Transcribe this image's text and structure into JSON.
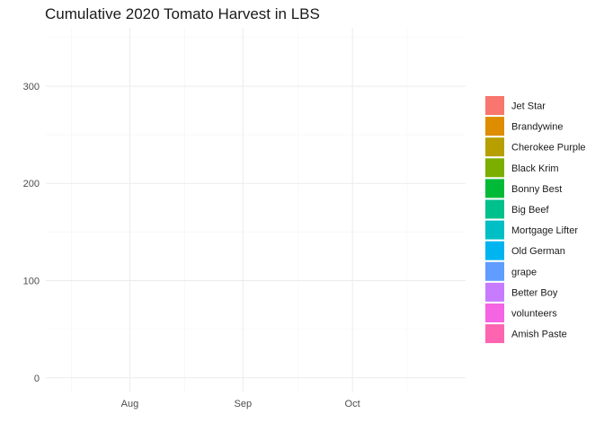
{
  "chart_data": {
    "type": "area",
    "title": "Cumulative 2020 Tomato Harvest in LBS",
    "xlabel": "",
    "ylabel": "",
    "x_axis": {
      "type": "date",
      "range": [
        "2020-07-09",
        "2020-11-01"
      ],
      "ticks": [
        {
          "value": "2020-08-01",
          "label": "Aug"
        },
        {
          "value": "2020-09-01",
          "label": "Sep"
        },
        {
          "value": "2020-10-01",
          "label": "Oct"
        }
      ],
      "minor_ticks": [
        "2020-07-16",
        "2020-08-16",
        "2020-09-16",
        "2020-10-16"
      ]
    },
    "y_axis": {
      "range": [
        -15,
        360
      ],
      "ticks": [
        0,
        100,
        200,
        300
      ],
      "minor_ticks": [
        50,
        150,
        250,
        350
      ]
    },
    "grid": true,
    "legend": {
      "position": "right",
      "title": ""
    },
    "series": [
      {
        "name": "Jet Star",
        "color": "#F8766D"
      },
      {
        "name": "Brandywine",
        "color": "#DE8C00"
      },
      {
        "name": "Cherokee Purple",
        "color": "#B79F00"
      },
      {
        "name": "Black Krim",
        "color": "#7CAE00"
      },
      {
        "name": "Bonny Best",
        "color": "#00BA38"
      },
      {
        "name": "Big Beef",
        "color": "#00C08B"
      },
      {
        "name": "Mortgage Lifter",
        "color": "#00BFC4"
      },
      {
        "name": "Old German",
        "color": "#00B4F0"
      },
      {
        "name": "grape",
        "color": "#619CFF"
      },
      {
        "name": "Better Boy",
        "color": "#C77CFF"
      },
      {
        "name": "volunteers",
        "color": "#F564E3"
      },
      {
        "name": "Amish Paste",
        "color": "#FF64B0"
      }
    ]
  }
}
